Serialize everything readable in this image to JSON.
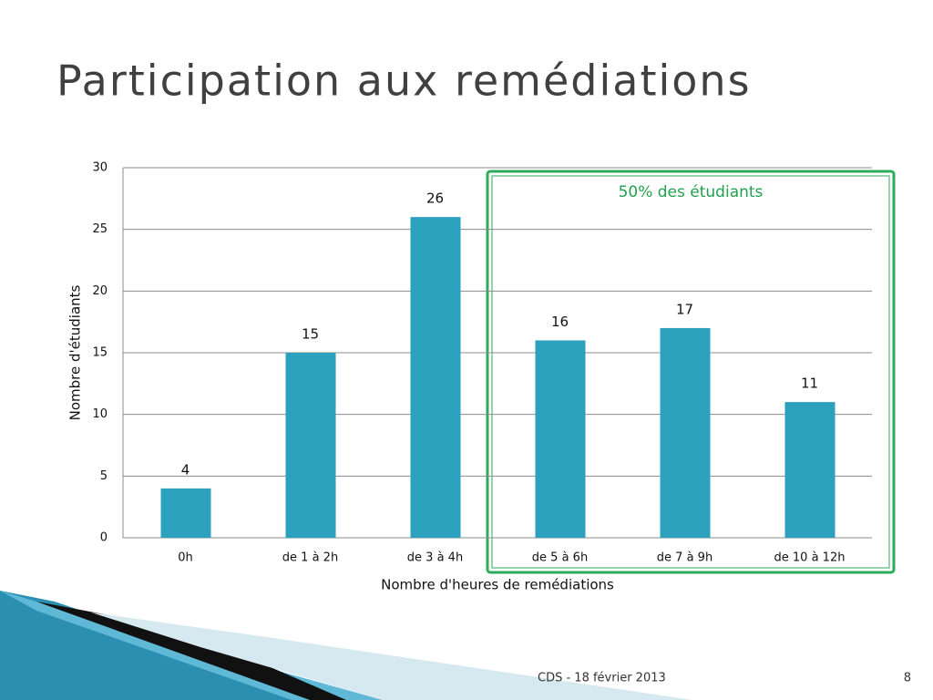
{
  "chart_data": {
    "type": "bar",
    "title": "Participation aux remédiations",
    "categories": [
      "0h",
      "de 1 à 2h",
      "de 3 à 4h",
      "de 5 à 6h",
      "de 7 à 9h",
      "de 10 à 12h"
    ],
    "values": [
      4,
      15,
      26,
      16,
      17,
      11
    ],
    "color": "#2ca1bd",
    "ylim": [
      0,
      30
    ],
    "yticks": [
      0,
      5,
      10,
      15,
      20,
      25,
      30
    ],
    "grid": true,
    "xlabel": "Nombre d'heures de remédiations",
    "ylabel": "Nombre d'étudiants",
    "annotation": "50% des étudiants"
  },
  "footer": {
    "text": "CDS - 18 février 2013",
    "page": 8
  }
}
